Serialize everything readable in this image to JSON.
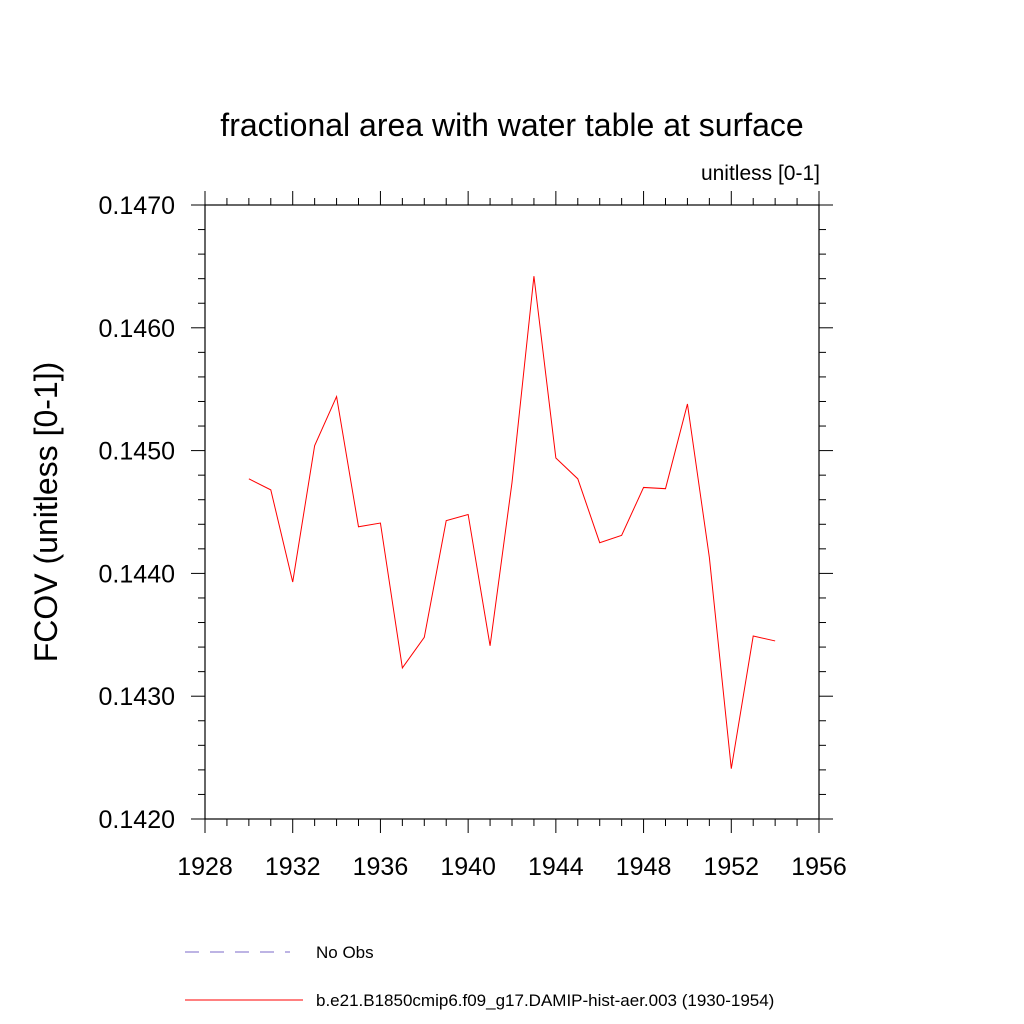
{
  "chart_data": {
    "type": "line",
    "title": "fractional area with water table at surface",
    "units_label": "unitless [0-1]",
    "ylabel": "FCOV  (unitless [0-1])",
    "xlabel": "",
    "xlim": [
      1928,
      1956
    ],
    "ylim": [
      0.142,
      0.147
    ],
    "x_ticks": [
      1928,
      1932,
      1936,
      1940,
      1944,
      1948,
      1952,
      1956
    ],
    "x_tick_labels": [
      "1928",
      "1932",
      "1936",
      "1940",
      "1944",
      "1948",
      "1952",
      "1956"
    ],
    "y_ticks": [
      0.142,
      0.143,
      0.144,
      0.145,
      0.146,
      0.147
    ],
    "y_tick_labels": [
      "0.1420",
      "0.1430",
      "0.1440",
      "0.1450",
      "0.1460",
      "0.1470"
    ],
    "grid": false,
    "legend_placement": "bottom",
    "series": [
      {
        "name": "b.e21.B1850cmip6.f09_g17.DAMIP-hist-aer.003 (1930-1954)",
        "color": "#ff0000",
        "style": "solid",
        "x": [
          1930,
          1931,
          1932,
          1933,
          1934,
          1935,
          1936,
          1937,
          1938,
          1939,
          1940,
          1941,
          1942,
          1943,
          1944,
          1945,
          1946,
          1947,
          1948,
          1949,
          1950,
          1951,
          1952,
          1953,
          1954
        ],
        "y": [
          0.14477,
          0.14468,
          0.14393,
          0.14504,
          0.14544,
          0.14438,
          0.14441,
          0.14323,
          0.14348,
          0.14443,
          0.14448,
          0.14341,
          0.14474,
          0.14642,
          0.14494,
          0.14477,
          0.14425,
          0.14431,
          0.1447,
          0.14469,
          0.14538,
          0.14413,
          0.14241,
          0.14349,
          0.14345
        ]
      }
    ],
    "legend": [
      {
        "label": "No Obs",
        "color": "#7b68c8",
        "style": "dashed"
      },
      {
        "label": "b.e21.B1850cmip6.f09_g17.DAMIP-hist-aer.003 (1930-1954)",
        "color": "#ff0000",
        "style": "solid"
      }
    ]
  }
}
